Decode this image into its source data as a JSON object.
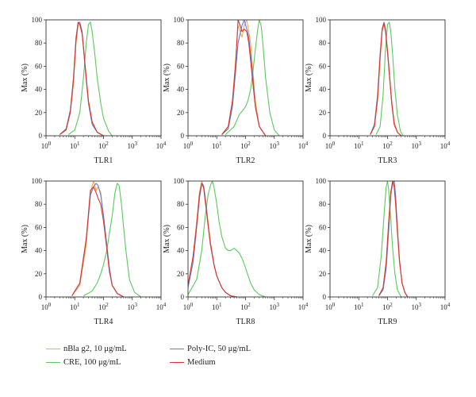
{
  "axis": {
    "ylabel": "Max (%)",
    "yticks": [
      "0",
      "20",
      "40",
      "60",
      "80",
      "100"
    ],
    "xticks": [
      {
        "base": "10",
        "exp": "0"
      },
      {
        "base": "10",
        "exp": "1"
      },
      {
        "base": "10",
        "exp": "2"
      },
      {
        "base": "10",
        "exp": "3"
      },
      {
        "base": "10",
        "exp": "4"
      }
    ]
  },
  "legend": {
    "nbla": "nBla g2, 10 μg/mL",
    "cre": "CRE, 100 μg/mL",
    "polyic": "Poly-IC, 50 μg/mL",
    "medium": "Medium"
  },
  "colors": {
    "nbla": "#f5a94b",
    "cre": "#5cc95c",
    "polyic": "#5b7fd6",
    "medium": "#e0312b"
  },
  "chart_data": [
    {
      "type": "line",
      "xlabel": "TLR1",
      "ylabel": "Max (%)",
      "x_scale": "log",
      "xlim": [
        1,
        10000
      ],
      "ylim": [
        0,
        100
      ],
      "series": [
        {
          "name": "nBla g2, 10 μg/mL",
          "x": [
            3,
            5,
            7,
            9,
            11,
            13,
            15,
            18,
            21,
            25,
            30,
            40,
            60,
            100
          ],
          "y": [
            1,
            5,
            20,
            45,
            80,
            95,
            96,
            88,
            70,
            50,
            30,
            12,
            3,
            0
          ]
        },
        {
          "name": "CRE, 100 μg/mL",
          "x": [
            6,
            10,
            15,
            20,
            25,
            30,
            35,
            40,
            50,
            60,
            80,
            100,
            150,
            200
          ],
          "y": [
            1,
            5,
            20,
            50,
            80,
            96,
            98,
            90,
            70,
            50,
            28,
            15,
            4,
            0
          ]
        },
        {
          "name": "Poly-IC, 50 μg/mL",
          "x": [
            3,
            5,
            7,
            9,
            11,
            13,
            15,
            18,
            21,
            25,
            30,
            40,
            60,
            100
          ],
          "y": [
            1,
            6,
            22,
            50,
            85,
            97,
            98,
            90,
            70,
            48,
            28,
            10,
            3,
            0
          ]
        },
        {
          "name": "Medium",
          "x": [
            3,
            5,
            7,
            9,
            11,
            13,
            15,
            18,
            21,
            25,
            30,
            40,
            60,
            100
          ],
          "y": [
            1,
            5,
            20,
            48,
            82,
            98,
            96,
            88,
            72,
            50,
            30,
            12,
            3,
            0
          ]
        }
      ]
    },
    {
      "type": "line",
      "xlabel": "TLR2",
      "ylabel": "Max (%)",
      "x_scale": "log",
      "xlim": [
        1,
        10000
      ],
      "ylim": [
        0,
        100
      ],
      "series": [
        {
          "name": "nBla g2, 10 μg/mL",
          "x": [
            15,
            25,
            35,
            45,
            55,
            65,
            75,
            90,
            110,
            130,
            150,
            180,
            220,
            300,
            500
          ],
          "y": [
            1,
            8,
            30,
            65,
            95,
            90,
            85,
            95,
            100,
            90,
            80,
            55,
            30,
            8,
            0
          ]
        },
        {
          "name": "CRE, 100 μg/mL",
          "x": [
            20,
            40,
            60,
            80,
            100,
            120,
            150,
            180,
            220,
            260,
            300,
            350,
            400,
            500,
            700,
            1000,
            1500
          ],
          "y": [
            1,
            8,
            18,
            22,
            25,
            30,
            40,
            55,
            75,
            90,
            100,
            95,
            80,
            50,
            20,
            5,
            0
          ]
        },
        {
          "name": "Poly-IC, 50 μg/mL",
          "x": [
            15,
            25,
            35,
            45,
            55,
            65,
            75,
            90,
            110,
            130,
            150,
            180,
            220,
            300,
            500
          ],
          "y": [
            1,
            6,
            25,
            55,
            80,
            88,
            95,
            100,
            92,
            85,
            70,
            50,
            25,
            8,
            0
          ]
        },
        {
          "name": "Medium",
          "x": [
            15,
            25,
            35,
            45,
            55,
            65,
            75,
            90,
            110,
            130,
            150,
            180,
            220,
            300,
            500
          ],
          "y": [
            1,
            8,
            30,
            60,
            100,
            95,
            90,
            92,
            90,
            80,
            65,
            45,
            25,
            8,
            0
          ]
        }
      ]
    },
    {
      "type": "line",
      "xlabel": "TLR3",
      "ylabel": "Max (%)",
      "x_scale": "log",
      "xlim": [
        1,
        10000
      ],
      "ylim": [
        0,
        100
      ],
      "series": [
        {
          "name": "nBla g2, 10 μg/mL",
          "x": [
            25,
            35,
            45,
            55,
            65,
            75,
            85,
            100,
            120,
            140,
            170,
            220,
            300
          ],
          "y": [
            1,
            8,
            30,
            65,
            90,
            96,
            92,
            75,
            50,
            30,
            12,
            3,
            0
          ]
        },
        {
          "name": "CRE, 100 μg/mL",
          "x": [
            40,
            55,
            70,
            85,
            100,
            115,
            130,
            150,
            180,
            220,
            280,
            350
          ],
          "y": [
            1,
            8,
            35,
            75,
            96,
            98,
            90,
            70,
            40,
            18,
            4,
            0
          ]
        },
        {
          "name": "Poly-IC, 50 μg/mL",
          "x": [
            25,
            35,
            45,
            55,
            65,
            75,
            85,
            100,
            120,
            140,
            170,
            220,
            300
          ],
          "y": [
            1,
            10,
            35,
            70,
            92,
            98,
            92,
            72,
            48,
            28,
            10,
            3,
            0
          ]
        },
        {
          "name": "Medium",
          "x": [
            25,
            35,
            45,
            55,
            65,
            75,
            85,
            100,
            120,
            140,
            170,
            220,
            300
          ],
          "y": [
            1,
            8,
            32,
            68,
            92,
            97,
            90,
            72,
            48,
            28,
            10,
            3,
            0
          ]
        }
      ]
    },
    {
      "type": "line",
      "xlabel": "TLR4",
      "ylabel": "Max (%)",
      "x_scale": "log",
      "xlim": [
        1,
        10000
      ],
      "ylim": [
        0,
        100
      ],
      "series": [
        {
          "name": "nBla g2, 10 μg/mL",
          "x": [
            8,
            15,
            25,
            35,
            45,
            55,
            65,
            80,
            100,
            130,
            160,
            200,
            300,
            500
          ],
          "y": [
            1,
            10,
            45,
            90,
            100,
            92,
            95,
            90,
            70,
            45,
            25,
            10,
            3,
            0
          ]
        },
        {
          "name": "CRE, 100 μg/mL",
          "x": [
            20,
            40,
            60,
            80,
            100,
            130,
            160,
            200,
            250,
            300,
            350,
            420,
            500,
            600,
            800,
            1200,
            2000
          ],
          "y": [
            1,
            5,
            12,
            20,
            28,
            40,
            55,
            70,
            90,
            98,
            96,
            80,
            60,
            40,
            15,
            4,
            0
          ]
        },
        {
          "name": "Poly-IC, 50 μg/mL",
          "x": [
            8,
            15,
            25,
            35,
            45,
            55,
            65,
            80,
            100,
            130,
            160,
            200,
            300,
            500
          ],
          "y": [
            1,
            12,
            50,
            88,
            95,
            98,
            96,
            88,
            70,
            45,
            25,
            10,
            3,
            0
          ]
        },
        {
          "name": "Medium",
          "x": [
            8,
            15,
            25,
            35,
            45,
            55,
            65,
            80,
            100,
            130,
            160,
            200,
            300,
            500
          ],
          "y": [
            1,
            12,
            50,
            92,
            95,
            90,
            85,
            80,
            65,
            42,
            22,
            10,
            3,
            0
          ]
        }
      ]
    },
    {
      "type": "line",
      "xlabel": "TLR8",
      "ylabel": "Max (%)",
      "x_scale": "log",
      "xlim": [
        1,
        10000
      ],
      "ylim": [
        0,
        100
      ],
      "series": [
        {
          "name": "nBla g2, 10 μg/mL",
          "x": [
            1,
            1.5,
            2,
            2.5,
            3,
            3.5,
            4,
            5,
            6,
            8,
            10,
            15,
            20,
            30,
            50
          ],
          "y": [
            10,
            35,
            65,
            90,
            100,
            95,
            85,
            65,
            48,
            28,
            18,
            8,
            4,
            1,
            0
          ]
        },
        {
          "name": "CRE, 100 μg/mL",
          "x": [
            1,
            2,
            3,
            4,
            5,
            6,
            7,
            8,
            10,
            12,
            15,
            20,
            25,
            30,
            40,
            50,
            60,
            80,
            100,
            150,
            200,
            300,
            500
          ],
          "y": [
            2,
            15,
            40,
            70,
            88,
            96,
            100,
            95,
            80,
            65,
            52,
            42,
            40,
            40,
            42,
            40,
            38,
            32,
            25,
            12,
            6,
            2,
            0
          ]
        },
        {
          "name": "Poly-IC, 50 μg/mL",
          "x": [
            1,
            1.5,
            2,
            2.5,
            3,
            3.5,
            4,
            5,
            6,
            8,
            10,
            15,
            20,
            30,
            50
          ],
          "y": [
            8,
            30,
            60,
            85,
            98,
            96,
            85,
            62,
            45,
            28,
            18,
            8,
            4,
            1,
            0
          ]
        },
        {
          "name": "Medium",
          "x": [
            1,
            1.5,
            2,
            2.5,
            3,
            3.5,
            4,
            5,
            6,
            8,
            10,
            15,
            20,
            30,
            50
          ],
          "y": [
            10,
            35,
            62,
            88,
            98,
            94,
            82,
            62,
            46,
            28,
            18,
            8,
            4,
            1,
            0
          ]
        }
      ]
    },
    {
      "type": "line",
      "xlabel": "TLR9",
      "ylabel": "Max (%)",
      "x_scale": "log",
      "xlim": [
        1,
        10000
      ],
      "ylim": [
        0,
        100
      ],
      "series": [
        {
          "name": "nBla g2, 10 μg/mL",
          "x": [
            50,
            70,
            90,
            110,
            130,
            150,
            170,
            190,
            220,
            260,
            320,
            400,
            500
          ],
          "y": [
            1,
            8,
            30,
            65,
            90,
            100,
            95,
            80,
            55,
            30,
            12,
            4,
            0
          ]
        },
        {
          "name": "CRE, 100 μg/mL",
          "x": [
            30,
            45,
            60,
            75,
            90,
            100,
            110,
            125,
            150,
            180,
            220,
            300
          ],
          "y": [
            1,
            8,
            35,
            70,
            95,
            100,
            92,
            72,
            42,
            20,
            6,
            0
          ]
        },
        {
          "name": "Poly-IC, 50 μg/mL",
          "x": [
            50,
            70,
            90,
            110,
            130,
            150,
            170,
            190,
            220,
            260,
            320,
            400,
            500
          ],
          "y": [
            1,
            6,
            25,
            58,
            88,
            98,
            100,
            88,
            60,
            32,
            12,
            4,
            0
          ]
        },
        {
          "name": "Medium",
          "x": [
            50,
            70,
            90,
            110,
            130,
            150,
            170,
            190,
            220,
            260,
            320,
            400,
            500
          ],
          "y": [
            1,
            8,
            30,
            65,
            90,
            100,
            95,
            82,
            58,
            32,
            12,
            4,
            0
          ]
        }
      ]
    }
  ]
}
